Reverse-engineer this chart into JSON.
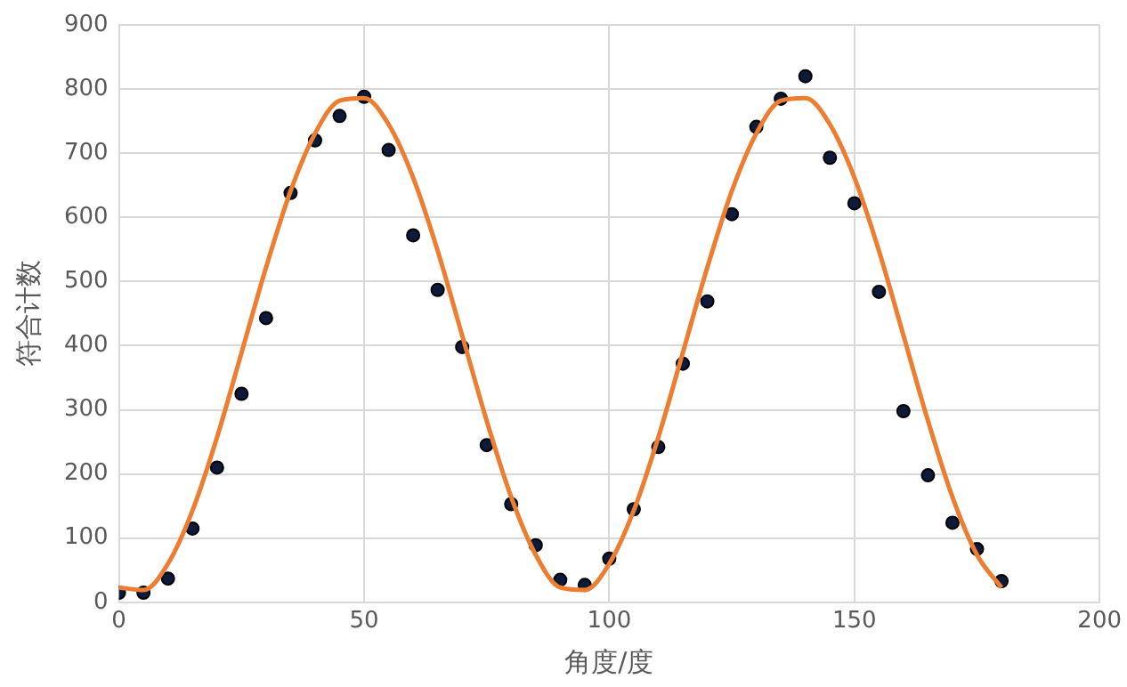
{
  "chart_data": {
    "type": "scatter",
    "xlabel": "角度/度",
    "ylabel": "符合计数",
    "xlim": [
      0,
      200
    ],
    "xticks": [
      0,
      50,
      100,
      150,
      200
    ],
    "ylim": [
      0,
      900
    ],
    "yticks": [
      0,
      100,
      200,
      300,
      400,
      500,
      600,
      700,
      800,
      900
    ],
    "grid": true,
    "legend": false,
    "series": [
      {
        "type": "line",
        "color": "#ed7d31",
        "marker": "none",
        "x": [
          0,
          5,
          10,
          15,
          20,
          25,
          30,
          35,
          40,
          45,
          50,
          55,
          60,
          65,
          70,
          75,
          80,
          85,
          90,
          95,
          100,
          105,
          110,
          115,
          120,
          125,
          130,
          135,
          140,
          145,
          150,
          155,
          160,
          165,
          170,
          175,
          180
        ],
        "values": [
          23,
          19,
          60,
          143,
          257,
          389,
          522,
          641,
          731,
          782,
          786,
          745,
          662,
          548,
          416,
          283,
          164,
          74,
          23,
          19,
          60,
          143,
          257,
          389,
          522,
          641,
          731,
          782,
          786,
          745,
          662,
          548,
          416,
          283,
          164,
          74,
          23
        ]
      },
      {
        "color": "#0d1a3a",
        "marker": "circle",
        "x": [
          0,
          5,
          10,
          15,
          20,
          25,
          30,
          35,
          40,
          45,
          50,
          55,
          60,
          65,
          70,
          75,
          80,
          85,
          90,
          95,
          100,
          105,
          110,
          115,
          120,
          125,
          130,
          135,
          140,
          145,
          150,
          155,
          160,
          165,
          170,
          175,
          180
        ],
        "values": [
          15,
          15,
          37,
          115,
          210,
          325,
          443,
          638,
          720,
          758,
          788,
          705,
          572,
          487,
          398,
          245,
          153,
          89,
          35,
          27,
          68,
          145,
          242,
          372,
          469,
          605,
          741,
          785,
          820,
          693,
          622,
          484,
          298,
          198,
          124,
          83,
          33
        ]
      }
    ]
  }
}
